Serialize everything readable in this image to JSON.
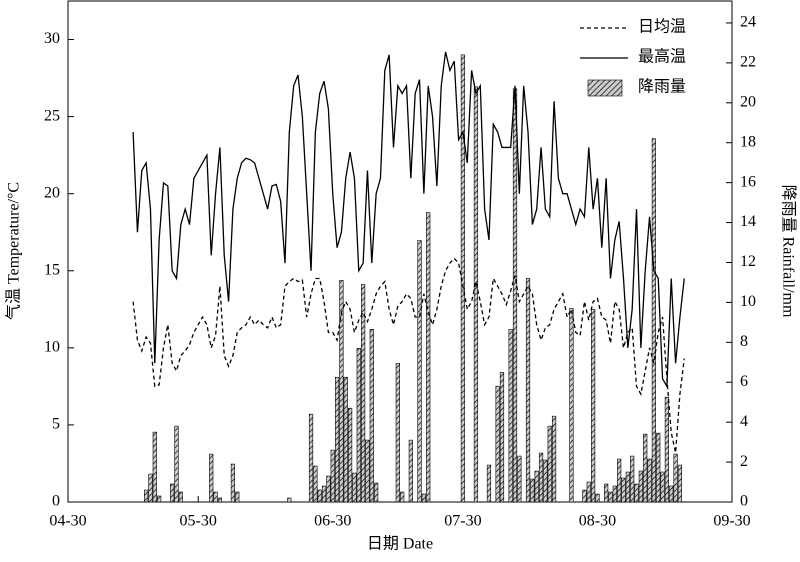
{
  "chart_data": {
    "type": "line",
    "x_label": "日期 Date",
    "y_label": "气温 Temperature/°C",
    "y2_label": "降雨量 Rainfall/mm",
    "x": [
      "05-15",
      "05-16",
      "05-17",
      "05-18",
      "05-19",
      "05-20",
      "05-21",
      "05-22",
      "05-23",
      "05-24",
      "05-25",
      "05-26",
      "05-27",
      "05-28",
      "05-29",
      "05-30",
      "05-31",
      "06-01",
      "06-02",
      "06-03",
      "06-04",
      "06-05",
      "06-06",
      "06-07",
      "06-08",
      "06-09",
      "06-10",
      "06-11",
      "06-12",
      "06-13",
      "06-14",
      "06-15",
      "06-16",
      "06-17",
      "06-18",
      "06-19",
      "06-20",
      "06-21",
      "06-22",
      "06-23",
      "06-24",
      "06-25",
      "06-26",
      "06-27",
      "06-28",
      "06-29",
      "06-30",
      "07-01",
      "07-02",
      "07-03",
      "07-04",
      "07-05",
      "07-06",
      "07-07",
      "07-08",
      "07-09",
      "07-10",
      "07-11",
      "07-12",
      "07-13",
      "07-14",
      "07-15",
      "07-16",
      "07-17",
      "07-18",
      "07-19",
      "07-20",
      "07-21",
      "07-22",
      "07-23",
      "07-24",
      "07-25",
      "07-26",
      "07-27",
      "07-28",
      "07-29",
      "07-30",
      "07-31",
      "08-01",
      "08-02",
      "08-03",
      "08-04",
      "08-05",
      "08-06",
      "08-07",
      "08-08",
      "08-09",
      "08-10",
      "08-11",
      "08-12",
      "08-13",
      "08-14",
      "08-15",
      "08-16",
      "08-17",
      "08-18",
      "08-19",
      "08-20",
      "08-21",
      "08-22",
      "08-23",
      "08-24",
      "08-25",
      "08-26",
      "08-27",
      "08-28",
      "08-29",
      "08-30",
      "08-31",
      "09-01",
      "09-02",
      "09-03",
      "09-04",
      "09-05",
      "09-06",
      "09-07",
      "09-08",
      "09-09",
      "09-10",
      "09-11",
      "09-12",
      "09-13",
      "09-14",
      "09-15",
      "09-16",
      "09-17",
      "09-18",
      "09-19"
    ],
    "series": [
      {
        "name": "日均温",
        "type": "line",
        "style": "dashed",
        "color": "#000000",
        "axis": "y",
        "values": [
          13,
          10.5,
          9.8,
          10.7,
          10.3,
          7.5,
          7.6,
          10,
          11.5,
          9,
          8.5,
          9.5,
          9.8,
          10.2,
          11,
          11.5,
          12,
          11.5,
          10,
          10.8,
          14,
          9.5,
          8.8,
          9.5,
          11,
          11.3,
          11.5,
          12,
          11.5,
          11.8,
          11.5,
          11.3,
          12,
          11.3,
          11.5,
          14,
          14.3,
          14.5,
          14.3,
          14.4,
          12,
          13.5,
          14.5,
          14.5,
          13,
          11,
          11,
          10.5,
          12.3,
          13,
          12.5,
          11,
          11.8,
          12.3,
          11.7,
          12.5,
          13.5,
          14,
          14.3,
          12.5,
          11.5,
          12.7,
          13,
          13.5,
          13.2,
          12,
          12,
          13.5,
          12.3,
          11.5,
          12.5,
          14,
          15,
          15.5,
          15.8,
          15.5,
          14,
          12.5,
          13,
          14.3,
          13,
          11.5,
          12,
          14.5,
          14,
          13.5,
          12.8,
          13.7,
          14.7,
          13,
          13.5,
          14,
          13.5,
          11.5,
          10.5,
          11.3,
          11.5,
          12.5,
          13,
          13.5,
          12,
          12.5,
          11,
          10.8,
          13,
          11.8,
          13,
          13.2,
          12,
          11.8,
          10.3,
          13,
          12.5,
          10,
          11,
          11.3,
          7.5,
          7,
          8.5,
          10,
          9,
          11,
          12,
          8,
          4.5,
          3.2,
          7,
          9.3
        ]
      },
      {
        "name": "最高温",
        "type": "line",
        "style": "solid",
        "color": "#000000",
        "axis": "y",
        "values": [
          24,
          17.5,
          21.5,
          22,
          19,
          9,
          17,
          20.7,
          20.5,
          15,
          14.5,
          18,
          19,
          18,
          21,
          21.5,
          22,
          22.5,
          16,
          20,
          23,
          16,
          13,
          19,
          21,
          22,
          22.3,
          22.2,
          22,
          21,
          20,
          19,
          20.5,
          20.6,
          19.5,
          15.5,
          24,
          27,
          27.7,
          25,
          20,
          15,
          24,
          26.5,
          27.3,
          25.5,
          20,
          16.5,
          17.5,
          21,
          22.7,
          21,
          15,
          15.5,
          21.5,
          15.5,
          20,
          21,
          28,
          29,
          23,
          27,
          26.5,
          27,
          21,
          26.5,
          27.4,
          20,
          27,
          25,
          20.5,
          27,
          29.2,
          28,
          28.6,
          23.5,
          24,
          22,
          28,
          26.5,
          27,
          19,
          17,
          24.5,
          24,
          23,
          23,
          23,
          27,
          20,
          27,
          24,
          18,
          19,
          23,
          19,
          18.5,
          26,
          21,
          20,
          20,
          19,
          18,
          19,
          18.5,
          23,
          19,
          21,
          16.5,
          21,
          14.5,
          17,
          18.2,
          14.5,
          10,
          12.5,
          19,
          10,
          15,
          18.5,
          15,
          14.5,
          8,
          7.5,
          14.5,
          9,
          12,
          14.5
        ]
      },
      {
        "name": "降雨量",
        "type": "bar",
        "style": "hatch",
        "color": "#555555",
        "axis": "y2",
        "values": [
          0,
          0,
          0,
          0.6,
          1.4,
          3.5,
          0.3,
          0,
          0,
          0.9,
          3.8,
          0.5,
          0,
          0,
          0,
          0,
          0,
          0,
          2.4,
          0.5,
          0.2,
          0,
          0,
          1.9,
          0.5,
          0,
          0,
          0,
          0,
          0,
          0,
          0,
          0,
          0,
          0,
          0,
          0.2,
          0,
          0,
          0,
          0,
          4.4,
          1.8,
          0.6,
          0.8,
          1.3,
          2.6,
          6.25,
          11.1,
          6.25,
          4.7,
          1.45,
          7.7,
          10.9,
          3.1,
          8.65,
          0.95,
          0,
          0,
          0,
          0,
          6.95,
          0.5,
          0,
          3.1,
          0,
          13.1,
          0.4,
          14.5,
          0,
          0,
          0,
          0,
          0,
          0,
          0,
          22.4,
          0,
          0,
          20.8,
          0,
          0,
          1.85,
          0,
          5.8,
          6.5,
          0,
          8.65,
          20.7,
          2.3,
          0,
          11.2,
          1.15,
          1.55,
          2.45,
          2.1,
          3.8,
          4.3,
          0,
          0,
          0,
          9.7,
          0,
          0,
          0.6,
          1.0,
          9.65,
          0.4,
          0,
          0.9,
          0.5,
          0.8,
          2.15,
          1.2,
          1.5,
          2.3,
          0.9,
          1.55,
          3.4,
          2.15,
          18.2,
          3.45,
          1.5,
          5.25,
          0.8,
          2.4,
          1.85,
          0
        ]
      }
    ],
    "xlim": [
      "04-30",
      "09-30"
    ],
    "xticks": [
      "04-30",
      "05-30",
      "06-30",
      "07-30",
      "08-30",
      "09-30"
    ],
    "ylim": [
      0,
      32.5
    ],
    "yticks": [
      0,
      5,
      10,
      15,
      20,
      25,
      30
    ],
    "y2lim": [
      0,
      25.1
    ],
    "y2ticks": [
      0,
      2,
      4,
      6,
      8,
      10,
      12,
      14,
      16,
      18,
      20,
      22,
      24
    ],
    "legend": "upper-right"
  }
}
